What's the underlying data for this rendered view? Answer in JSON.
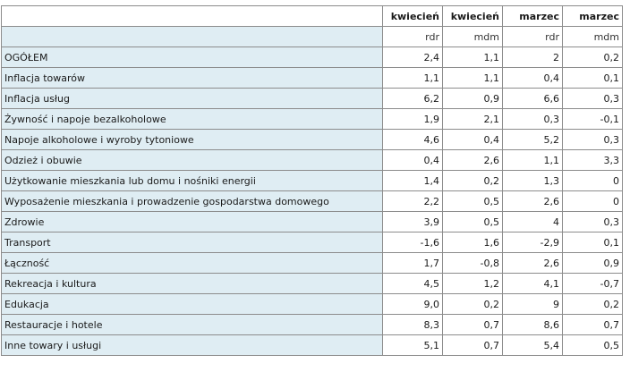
{
  "header": {
    "months": [
      "kwiecień",
      "kwiecień",
      "marzec",
      "marzec"
    ],
    "units": [
      "rdr",
      "mdm",
      "rdr",
      "mdm"
    ]
  },
  "rows": [
    {
      "label": "OGÓŁEM",
      "values": [
        "2,4",
        "1,1",
        "2",
        "0,2"
      ]
    },
    {
      "label": "Inflacja towarów",
      "values": [
        "1,1",
        "1,1",
        "0,4",
        "0,1"
      ]
    },
    {
      "label": "Inflacja usług",
      "values": [
        "6,2",
        "0,9",
        "6,6",
        "0,3"
      ]
    },
    {
      "label": "Żywność i napoje bezalkoholowe",
      "values": [
        "1,9",
        "2,1",
        "0,3",
        "-0,1"
      ]
    },
    {
      "label": "Napoje alkoholowe i wyroby tytoniowe",
      "values": [
        "4,6",
        "0,4",
        "5,2",
        "0,3"
      ]
    },
    {
      "label": "Odzież i obuwie",
      "values": [
        "0,4",
        "2,6",
        "1,1",
        "3,3"
      ]
    },
    {
      "label": "Użytkowanie mieszkania lub domu i nośniki energii",
      "values": [
        "1,4",
        "0,2",
        "1,3",
        "0"
      ]
    },
    {
      "label": "Wyposażenie mieszkania i prowadzenie gospodarstwa domowego",
      "values": [
        "2,2",
        "0,5",
        "2,6",
        "0"
      ]
    },
    {
      "label": "Zdrowie",
      "values": [
        "3,9",
        "0,5",
        "4",
        "0,3"
      ]
    },
    {
      "label": "Transport",
      "values": [
        "-1,6",
        "1,6",
        "-2,9",
        "0,1"
      ]
    },
    {
      "label": "Łączność",
      "values": [
        "1,7",
        "-0,8",
        "2,6",
        "0,9"
      ]
    },
    {
      "label": "Rekreacja i kultura",
      "values": [
        "4,5",
        "1,2",
        "4,1",
        "-0,7"
      ]
    },
    {
      "label": "Edukacja",
      "values": [
        "9,0",
        "0,2",
        "9",
        "0,2"
      ]
    },
    {
      "label": "Restauracje i hotele",
      "values": [
        "8,3",
        "0,7",
        "8,6",
        "0,7"
      ]
    },
    {
      "label": "Inne towary i usługi",
      "values": [
        "5,1",
        "0,7",
        "5,4",
        "0,5"
      ]
    }
  ]
}
